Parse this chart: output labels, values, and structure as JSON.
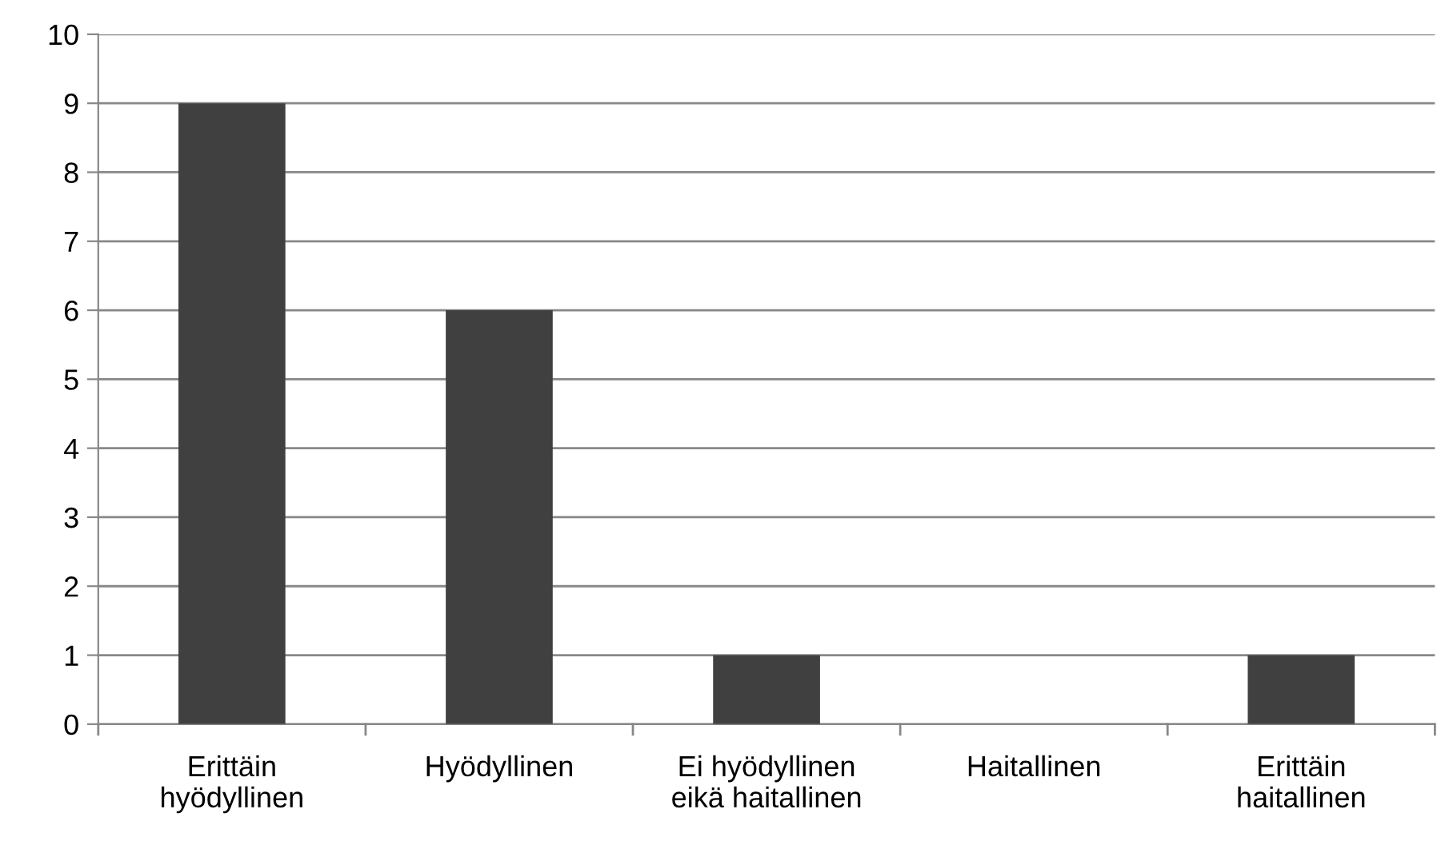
{
  "chart_data": {
    "type": "bar",
    "categories": [
      "Erittäin\nhyödyllinen",
      "Hyödyllinen",
      "Ei hyödyllinen\neikä haitallinen",
      "Haitallinen",
      "Erittäin\nhaitallinen"
    ],
    "series": [
      {
        "color": "#404040",
        "values": [
          9,
          6,
          1,
          0,
          1
        ]
      }
    ],
    "ylim": [
      0,
      10
    ],
    "yticks": [
      0,
      1,
      2,
      3,
      4,
      5,
      6,
      7,
      8,
      9,
      10
    ],
    "grid": "y",
    "legend": false
  }
}
